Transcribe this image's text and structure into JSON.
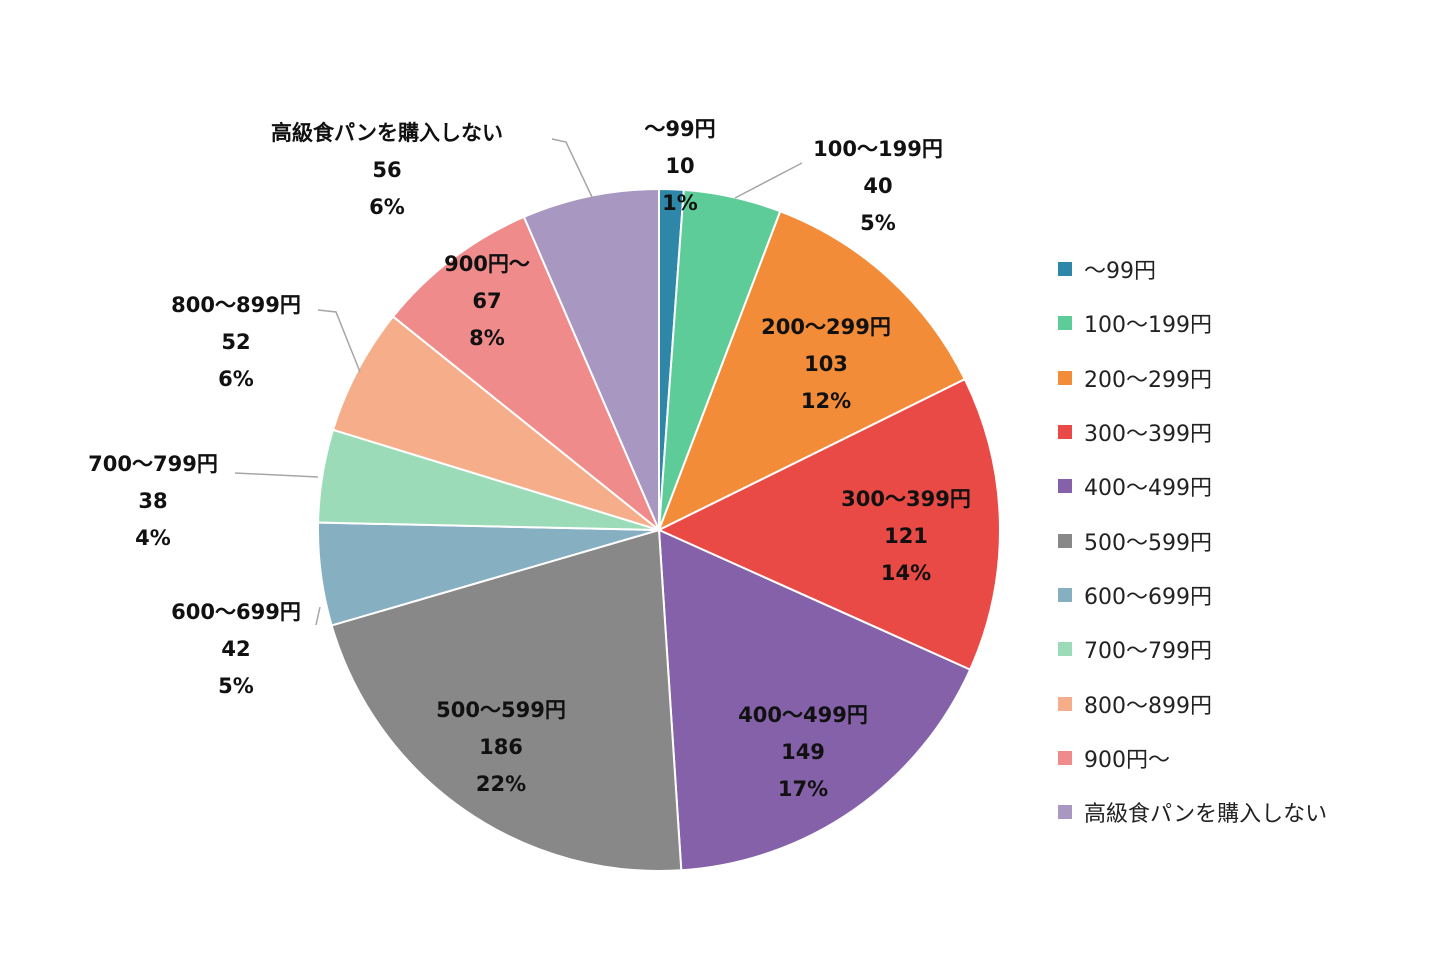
{
  "chart_data": {
    "type": "pie",
    "legend_position": "right",
    "slices": [
      {
        "label": "～99円",
        "value": 10,
        "percent": "1%",
        "color": "#2e86a8"
      },
      {
        "label": "100～199円",
        "value": 40,
        "percent": "5%",
        "color": "#5ecc98"
      },
      {
        "label": "200～299円",
        "value": 103,
        "percent": "12%",
        "color": "#f28c38"
      },
      {
        "label": "300～399円",
        "value": 121,
        "percent": "14%",
        "color": "#ea4a45"
      },
      {
        "label": "400～499円",
        "value": 149,
        "percent": "17%",
        "color": "#8461a8"
      },
      {
        "label": "500～599円",
        "value": 186,
        "percent": "22%",
        "color": "#888888"
      },
      {
        "label": "600～699円",
        "value": 42,
        "percent": "5%",
        "color": "#86afc2"
      },
      {
        "label": "700～799円",
        "value": 38,
        "percent": "4%",
        "color": "#9bdbb8"
      },
      {
        "label": "800～899円",
        "value": 52,
        "percent": "6%",
        "color": "#f6ad89"
      },
      {
        "label": "900円～",
        "value": 67,
        "percent": "8%",
        "color": "#f08b8b"
      },
      {
        "label": "高級食パンを購入しない",
        "value": 56,
        "percent": "6%",
        "color": "#a898c1"
      }
    ]
  }
}
